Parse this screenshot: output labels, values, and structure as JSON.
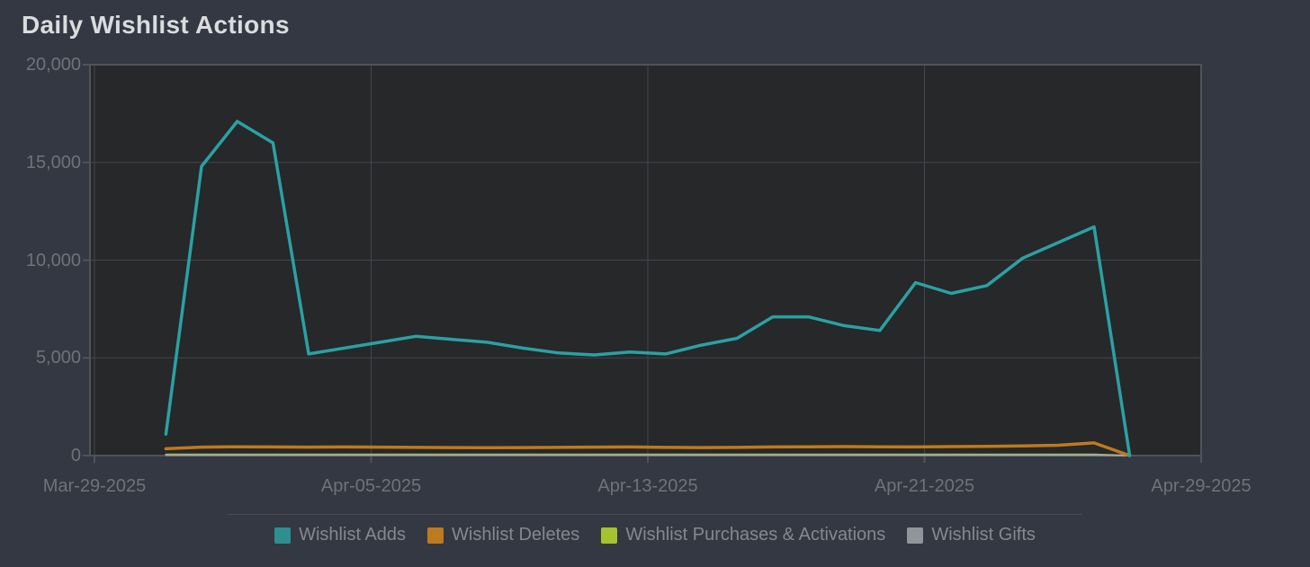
{
  "header": {
    "title": "Daily Wishlist Actions"
  },
  "colors": {
    "background": "#343843",
    "plot_background": "#26282A",
    "grid": "#43464D",
    "axis_border": "#50535A",
    "tick_label": "#6F7378",
    "title_text": "#DADCDD",
    "legend_text": "#85898E",
    "legend_divider": "#4A4D52"
  },
  "chart_data": {
    "type": "line",
    "title": "Daily Wishlist Actions",
    "x": [
      "Mar-31-2025",
      "Apr-01-2025",
      "Apr-02-2025",
      "Apr-03-2025",
      "Apr-04-2025",
      "Apr-05-2025",
      "Apr-06-2025",
      "Apr-07-2025",
      "Apr-08-2025",
      "Apr-09-2025",
      "Apr-10-2025",
      "Apr-11-2025",
      "Apr-12-2025",
      "Apr-13-2025",
      "Apr-14-2025",
      "Apr-15-2025",
      "Apr-16-2025",
      "Apr-17-2025",
      "Apr-18-2025",
      "Apr-19-2025",
      "Apr-20-2025",
      "Apr-21-2025",
      "Apr-22-2025",
      "Apr-23-2025",
      "Apr-24-2025",
      "Apr-25-2025",
      "Apr-26-2025",
      "Apr-27-2025"
    ],
    "series": [
      {
        "name": "Wishlist Adds",
        "color": "#2BA1A2",
        "swatch": "#2E8F8F",
        "values": [
          1100,
          14800,
          17100,
          16000,
          5200,
          5500,
          5800,
          6100,
          5950,
          5800,
          5500,
          5250,
          5150,
          5300,
          5200,
          5650,
          6000,
          7100,
          7100,
          6650,
          6400,
          8850,
          8300,
          8700,
          10100,
          10900,
          11700,
          0
        ]
      },
      {
        "name": "Wishlist Deletes",
        "color": "#BE7A1E",
        "swatch": "#BE7A1E",
        "values": [
          350,
          430,
          450,
          440,
          430,
          440,
          430,
          420,
          410,
          400,
          410,
          420,
          430,
          440,
          420,
          410,
          420,
          440,
          450,
          460,
          450,
          440,
          460,
          470,
          490,
          530,
          650,
          0
        ]
      },
      {
        "name": "Wishlist Purchases & Activations",
        "color": "#A4C32F",
        "swatch": "#A4C32F",
        "values": [
          60,
          60,
          60,
          60,
          60,
          60,
          60,
          60,
          60,
          60,
          60,
          60,
          60,
          60,
          60,
          60,
          60,
          60,
          60,
          60,
          60,
          60,
          60,
          60,
          60,
          60,
          60,
          0
        ]
      },
      {
        "name": "Wishlist Gifts",
        "color": "#9FA5AA",
        "swatch": "#8F959A",
        "values": [
          25,
          25,
          25,
          25,
          25,
          25,
          25,
          25,
          25,
          25,
          25,
          25,
          25,
          25,
          25,
          25,
          25,
          25,
          25,
          25,
          25,
          25,
          25,
          25,
          25,
          25,
          25,
          0
        ]
      }
    ],
    "ylim": [
      0,
      20000
    ],
    "y_ticks": [
      {
        "value": 0,
        "label": "0"
      },
      {
        "value": 5000,
        "label": "5,000"
      },
      {
        "value": 10000,
        "label": "10,000"
      },
      {
        "value": 15000,
        "label": "15,000"
      },
      {
        "value": 20000,
        "label": "20,000"
      }
    ],
    "x_ticks": [
      "Mar-29-2025",
      "Apr-05-2025",
      "Apr-13-2025",
      "Apr-21-2025",
      "Apr-29-2025"
    ],
    "axis_start_date": "Mar-29-2025",
    "axis_total_days": 31,
    "series_start_day_offset": 2,
    "grid": true,
    "legend_position": "bottom"
  }
}
